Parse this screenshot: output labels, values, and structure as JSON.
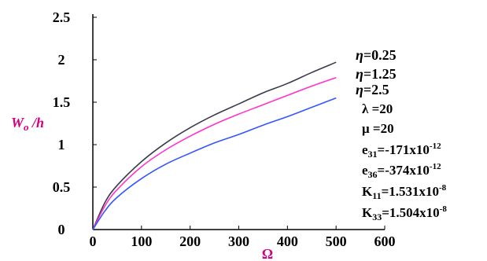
{
  "chart_data": {
    "type": "line",
    "title": "",
    "xlabel": "Ω",
    "ylabel": "W₀ /h",
    "ylabel_main": "W",
    "ylabel_sub": "o",
    "ylabel_rest": " /h",
    "xlim": [
      0,
      600
    ],
    "ylim": [
      0,
      2.5
    ],
    "x_ticks": [
      "0",
      "100",
      "200",
      "300",
      "400",
      "500",
      "600"
    ],
    "y_ticks": [
      "0",
      "0.5",
      "1",
      "1.5",
      "2",
      "2.5"
    ],
    "grid": false,
    "series": [
      {
        "name": "η=0.25",
        "color": "#3a3a4a",
        "x": [
          0,
          25,
          50,
          100,
          150,
          200,
          250,
          300,
          350,
          400,
          450,
          500
        ],
        "y": [
          0,
          0.32,
          0.52,
          0.8,
          1.02,
          1.2,
          1.35,
          1.48,
          1.61,
          1.72,
          1.85,
          1.97
        ]
      },
      {
        "name": "η=1.25",
        "color": "#ff33cc",
        "x": [
          0,
          25,
          50,
          100,
          150,
          200,
          250,
          300,
          350,
          400,
          450,
          500
        ],
        "y": [
          0,
          0.28,
          0.47,
          0.74,
          0.94,
          1.1,
          1.24,
          1.36,
          1.47,
          1.58,
          1.69,
          1.79
        ]
      },
      {
        "name": "η=2.5",
        "color": "#3355ff",
        "x": [
          0,
          25,
          50,
          100,
          150,
          200,
          250,
          300,
          350,
          400,
          450,
          500
        ],
        "y": [
          0,
          0.22,
          0.38,
          0.6,
          0.77,
          0.9,
          1.02,
          1.12,
          1.23,
          1.33,
          1.44,
          1.55
        ]
      }
    ],
    "annotations": [
      {
        "main": "λ   =20"
      },
      {
        "main": "μ  =20"
      },
      {
        "main": "e",
        "sub": "31",
        "rest": "=-171x10",
        "sup": "-12"
      },
      {
        "main": "e",
        "sub": "36",
        "rest": "=-374x10",
        "sup": "-12"
      },
      {
        "main": "K",
        "sub": "11",
        "rest": "=1.531x10",
        "sup": "-8"
      },
      {
        "main": "K",
        "sub": "33",
        "rest": "=1.504x10",
        "sup": "-8"
      }
    ]
  }
}
